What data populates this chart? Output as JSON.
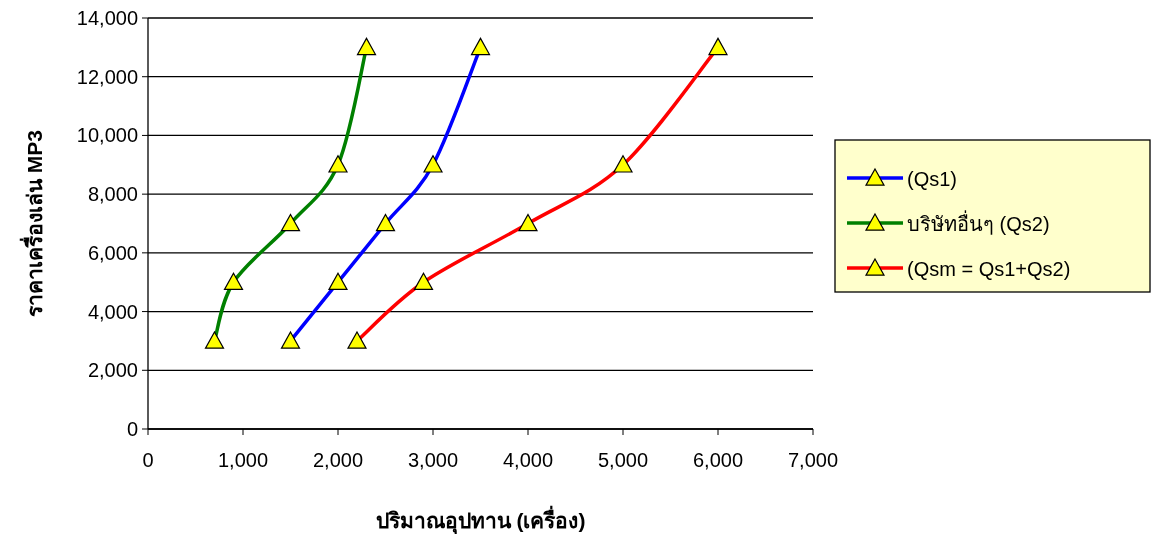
{
  "chart_data": {
    "type": "line",
    "xlabel": "ปริมาณอุปทาน (เครื่อง)",
    "ylabel": "ราคาเครื่องเล่น MP3",
    "series": [
      {
        "name": "(Qs1)",
        "color": "#0000ff",
        "x": [
          1500,
          2000,
          2500,
          3000,
          3500
        ],
        "values": [
          3000,
          5000,
          7000,
          9000,
          13000
        ]
      },
      {
        "name": "บริษัทอื่นๆ (Qs2)",
        "color": "#008000",
        "x": [
          700,
          900,
          1500,
          2000,
          2300
        ],
        "values": [
          3000,
          5000,
          7000,
          9000,
          13000
        ]
      },
      {
        "name": "(Qsm = Qs1+Qs2)",
        "color": "#ff0000",
        "x": [
          2200,
          2900,
          4000,
          5000,
          6000
        ],
        "values": [
          3000,
          5000,
          7000,
          9000,
          13000
        ]
      }
    ],
    "xlim": [
      0,
      7000
    ],
    "ylim": [
      0,
      14000
    ],
    "xticks": [
      0,
      {
        "value": 1000,
        "label": "1,000"
      },
      {
        "value": 2000,
        "label": "2,000"
      },
      {
        "value": 3000,
        "label": "3,000"
      },
      {
        "value": 4000,
        "label": "4,000"
      },
      {
        "value": 5000,
        "label": "5,000"
      },
      {
        "value": 6000,
        "label": "6,000"
      },
      {
        "value": 7000,
        "label": "7,000"
      }
    ],
    "yticks": [
      0,
      {
        "value": 2000,
        "label": "2,000"
      },
      {
        "value": 4000,
        "label": "4,000"
      },
      {
        "value": 6000,
        "label": "6,000"
      },
      {
        "value": 8000,
        "label": "8,000"
      },
      {
        "value": 10000,
        "label": "10,000"
      },
      {
        "value": 12000,
        "label": "12,000"
      },
      {
        "value": 14000,
        "label": "14,000"
      }
    ],
    "grid": "y",
    "legend": "right",
    "marker": "triangle",
    "line_style": "solid"
  }
}
